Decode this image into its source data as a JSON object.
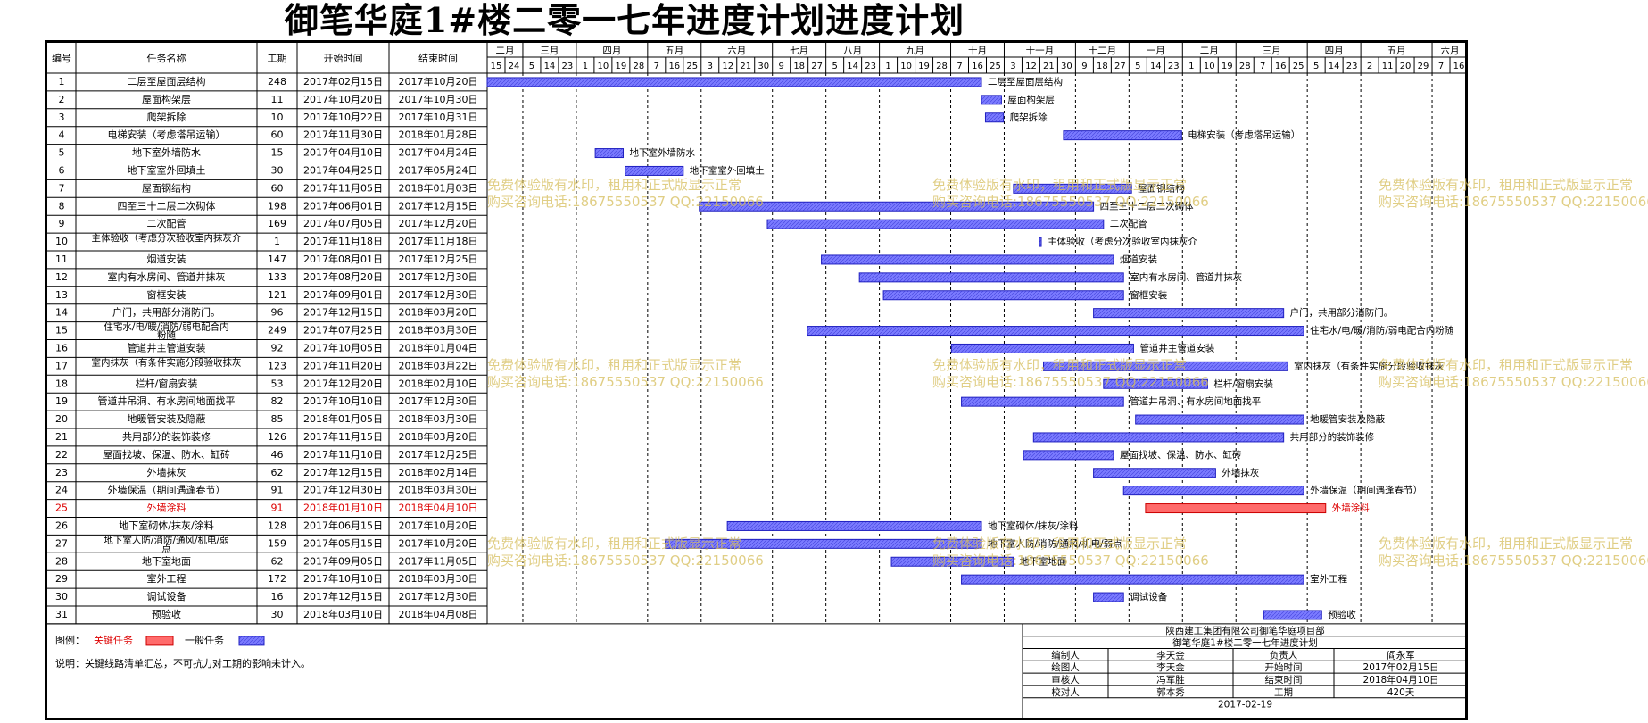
{
  "title": "御笔华庭1#楼二零一七年进度计划进度计划",
  "table_headers": [
    "编号",
    "任务名称",
    "工期",
    "开始时间",
    "结束时间"
  ],
  "timeline": {
    "months": [
      "二月",
      "三月",
      "四月",
      "五月",
      "六月",
      "七月",
      "八月",
      "九月",
      "十月",
      "十一月",
      "十二月",
      "一月",
      "二月",
      "三月",
      "四月",
      "五月",
      "六月"
    ],
    "days": [
      "15",
      "24",
      "5",
      "14",
      "23",
      "1",
      "10",
      "19",
      "28",
      "7",
      "16",
      "25",
      "3",
      "12",
      "21",
      "30",
      "9",
      "18",
      "27",
      "5",
      "14",
      "23",
      "1",
      "10",
      "19",
      "28",
      "7",
      "16",
      "25",
      "3",
      "12",
      "21",
      "30",
      "9",
      "18",
      "27",
      "5",
      "14",
      "23",
      "1",
      "10",
      "19",
      "28",
      "7",
      "16",
      "25",
      "5",
      "14",
      "23",
      "2",
      "11",
      "20",
      "29",
      "7",
      "16"
    ]
  },
  "chart_data": {
    "type": "gantt",
    "title": "御笔华庭1#楼二零一七年进度计划进度计划",
    "x_range": [
      "2017-02-15",
      "2018-06-20"
    ],
    "tasks": [
      {
        "id": "1",
        "name": "二层至屋面层结构",
        "duration": "248",
        "start": "2017年02月15日",
        "end": "2017年10月20日",
        "critical": false,
        "label": "二层至屋面层结构"
      },
      {
        "id": "2",
        "name": "屋面构架层",
        "duration": "11",
        "start": "2017年10月20日",
        "end": "2017年10月30日",
        "critical": false,
        "label": "屋面构架层"
      },
      {
        "id": "3",
        "name": "爬架拆除",
        "duration": "10",
        "start": "2017年10月22日",
        "end": "2017年10月31日",
        "critical": false,
        "label": "爬架拆除"
      },
      {
        "id": "4",
        "name": "电梯安装（考虑塔吊运输）",
        "duration": "60",
        "start": "2017年11月30日",
        "end": "2018年01月28日",
        "critical": false,
        "label": "电梯安装（考虑塔吊运输）"
      },
      {
        "id": "5",
        "name": "地下室外墙防水",
        "duration": "15",
        "start": "2017年04月10日",
        "end": "2017年04月24日",
        "critical": false,
        "label": "地下室外墙防水"
      },
      {
        "id": "6",
        "name": "地下室室外回填土",
        "duration": "30",
        "start": "2017年04月25日",
        "end": "2017年05月24日",
        "critical": false,
        "label": "地下室室外回填土"
      },
      {
        "id": "7",
        "name": "屋面钢结构",
        "duration": "60",
        "start": "2017年11月05日",
        "end": "2018年01月03日",
        "critical": false,
        "label": "屋面钢结构"
      },
      {
        "id": "8",
        "name": "四至三十二层二次砌体",
        "duration": "198",
        "start": "2017年06月01日",
        "end": "2017年12月15日",
        "critical": false,
        "label": "四至三十二层二次砌体"
      },
      {
        "id": "9",
        "name": "二次配管",
        "duration": "169",
        "start": "2017年07月05日",
        "end": "2017年12月20日",
        "critical": false,
        "label": "二次配管"
      },
      {
        "id": "10",
        "name": "主体验收（考虑分次验收室内抹灰介",
        "duration": "1",
        "start": "2017年11月18日",
        "end": "2017年11月18日",
        "critical": false,
        "label": "主体验收（考虑分次验收室内抹灰介"
      },
      {
        "id": "11",
        "name": "烟道安装",
        "duration": "147",
        "start": "2017年08月01日",
        "end": "2017年12月25日",
        "critical": false,
        "label": "烟道安装"
      },
      {
        "id": "12",
        "name": "室内有水房间、管道井抹灰",
        "duration": "133",
        "start": "2017年08月20日",
        "end": "2017年12月30日",
        "critical": false,
        "label": "室内有水房间、管道井抹灰"
      },
      {
        "id": "13",
        "name": "窗框安装",
        "duration": "121",
        "start": "2017年09月01日",
        "end": "2017年12月30日",
        "critical": false,
        "label": "窗框安装"
      },
      {
        "id": "14",
        "name": "户门，共用部分消防门。",
        "duration": "96",
        "start": "2017年12月15日",
        "end": "2018年03月20日",
        "critical": false,
        "label": "户门，共用部分消防门。"
      },
      {
        "id": "15",
        "name": "住宅水/电/暖/消防/弱电配合内粉随",
        "duration": "249",
        "start": "2017年07月25日",
        "end": "2018年03月30日",
        "critical": false,
        "label": "住宅水/电/暖/消防/弱电配合内粉随"
      },
      {
        "id": "16",
        "name": "管道井主管道安装",
        "duration": "92",
        "start": "2017年10月05日",
        "end": "2018年01月04日",
        "critical": false,
        "label": "管道井主管道安装"
      },
      {
        "id": "17",
        "name": "室内抹灰（有条件实施分段验收抹灰",
        "duration": "123",
        "start": "2017年11月20日",
        "end": "2018年03月22日",
        "critical": false,
        "label": "室内抹灰（有条件实施分段验收抹灰"
      },
      {
        "id": "18",
        "name": "栏杆/窗扇安装",
        "duration": "53",
        "start": "2017年12月20日",
        "end": "2018年02月10日",
        "critical": false,
        "label": "栏杆/窗扇安装"
      },
      {
        "id": "19",
        "name": "管道井吊洞、有水房间地面找平",
        "duration": "82",
        "start": "2017年10月10日",
        "end": "2017年12月30日",
        "critical": false,
        "label": "管道井吊洞、有水房间地面找平"
      },
      {
        "id": "20",
        "name": "地暖管安装及隐蔽",
        "duration": "85",
        "start": "2018年01月05日",
        "end": "2018年03月30日",
        "critical": false,
        "label": "地暖管安装及隐蔽"
      },
      {
        "id": "21",
        "name": "共用部分的装饰装修",
        "duration": "126",
        "start": "2017年11月15日",
        "end": "2018年03月20日",
        "critical": false,
        "label": "共用部分的装饰装修"
      },
      {
        "id": "22",
        "name": "屋面找坡、保温、防水、缸砖",
        "duration": "46",
        "start": "2017年11月10日",
        "end": "2017年12月25日",
        "critical": false,
        "label": "屋面找坡、保温、防水、缸砖"
      },
      {
        "id": "23",
        "name": "外墙抹灰",
        "duration": "62",
        "start": "2017年12月15日",
        "end": "2018年02月14日",
        "critical": false,
        "label": "外墙抹灰"
      },
      {
        "id": "24",
        "name": "外墙保温（期间遇逢春节）",
        "duration": "91",
        "start": "2017年12月30日",
        "end": "2018年03月30日",
        "critical": false,
        "label": "外墙保温（期间遇逢春节）"
      },
      {
        "id": "25",
        "name": "外墙涂料",
        "duration": "91",
        "start": "2018年01月10日",
        "end": "2018年04月10日",
        "critical": true,
        "label": "外墙涂料"
      },
      {
        "id": "26",
        "name": "地下室砌体/抹灰/涂料",
        "duration": "128",
        "start": "2017年06月15日",
        "end": "2017年10月20日",
        "critical": false,
        "label": "地下室砌体/抹灰/涂料"
      },
      {
        "id": "27",
        "name": "地下室人防/消防/通风/机电/弱点",
        "duration": "159",
        "start": "2017年05月15日",
        "end": "2017年10月20日",
        "critical": false,
        "label": "地下室人防/消防/通风/机电/弱点"
      },
      {
        "id": "28",
        "name": "地下室地面",
        "duration": "62",
        "start": "2017年09月05日",
        "end": "2017年11月05日",
        "critical": false,
        "label": "地下室地面"
      },
      {
        "id": "29",
        "name": "室外工程",
        "duration": "172",
        "start": "2017年10月10日",
        "end": "2018年03月30日",
        "critical": false,
        "label": "室外工程"
      },
      {
        "id": "30",
        "name": "调试设备",
        "duration": "16",
        "start": "2017年12月15日",
        "end": "2017年12月30日",
        "critical": false,
        "label": "调试设备"
      },
      {
        "id": "31",
        "name": "预验收",
        "duration": "30",
        "start": "2018年03月10日",
        "end": "2018年04月08日",
        "critical": false,
        "label": "预验收"
      }
    ]
  },
  "legend": {
    "label": "图例：",
    "critical_label": "关键任务",
    "normal_label": "一般任务",
    "note": "说明：关键线路清单汇总，不可抗力对工期的影响未计入。"
  },
  "title_block": {
    "company": "陕西建工集团有限公司御笔华庭项目部",
    "plan_name": "御笔华庭1#楼二零一七年进度计划",
    "rows": [
      [
        "编制人",
        "李天金",
        "负责人",
        "阎永军"
      ],
      [
        "绘图人",
        "李天金",
        "开始时间",
        "2017年02月15日"
      ],
      [
        "审核人",
        "冯军胜",
        "结束时间",
        "2018年04月10日"
      ],
      [
        "校对人",
        "郭本秀",
        "工期",
        "420天"
      ]
    ],
    "date": "2017-02-19"
  },
  "watermark": {
    "line1": "免费体验版有水印，租用和正式版显示正常",
    "line2": "购买咨询电话:18675550537 QQ:22150066"
  },
  "colors": {
    "normal_bar": "#7b7bff",
    "critical_bar": "#ff6b6b",
    "critical_text": "#dd0000",
    "watermark": "#d6be5c"
  }
}
